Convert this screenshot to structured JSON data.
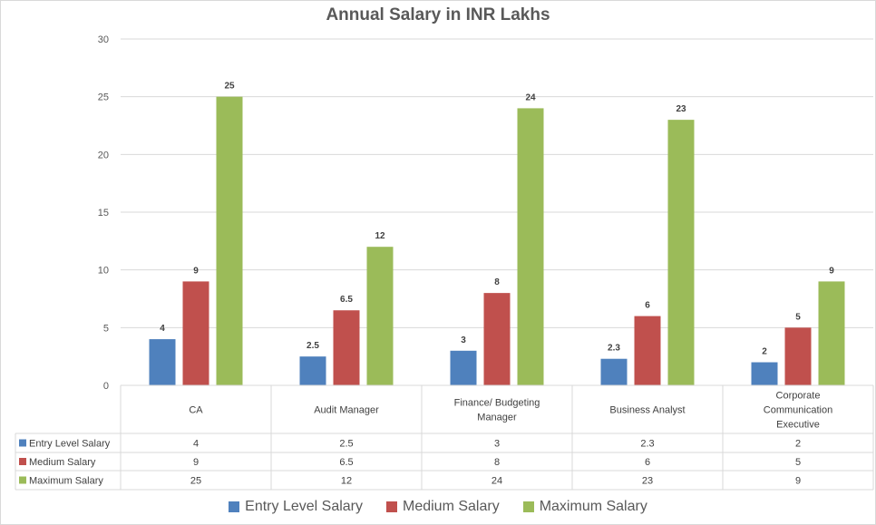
{
  "chart_data": {
    "type": "bar",
    "title": "Annual Salary in INR Lakhs",
    "xlabel": "",
    "ylabel": "",
    "ylim": [
      0,
      30
    ],
    "yticks": [
      0,
      5,
      10,
      15,
      20,
      25,
      30
    ],
    "grid": true,
    "legend_position": "bottom",
    "data_table": true,
    "categories": [
      "CA",
      "Audit Manager",
      "Finance/ Budgeting Manager",
      "Business Analyst",
      "Corporate Communication Executive"
    ],
    "category_lines": [
      [
        "CA"
      ],
      [
        "Audit Manager"
      ],
      [
        "Finance/ Budgeting",
        "Manager"
      ],
      [
        "Business Analyst"
      ],
      [
        "Corporate",
        "Communication",
        "Executive"
      ]
    ],
    "series": [
      {
        "name": "Entry Level Salary",
        "color": "#4f81bd",
        "values": [
          4,
          2.5,
          3,
          2.3,
          2
        ],
        "labels": [
          "4",
          "2.5",
          "3",
          "2.3",
          "2"
        ]
      },
      {
        "name": "Medium Salary",
        "color": "#c0504d",
        "values": [
          9,
          6.5,
          8,
          6,
          5
        ],
        "labels": [
          "9",
          "6.5",
          "8",
          "6",
          "5"
        ]
      },
      {
        "name": "Maximum Salary",
        "color": "#9bbb59",
        "values": [
          25,
          12,
          24,
          23,
          9
        ],
        "labels": [
          "25",
          "12",
          "24",
          "23",
          "9"
        ]
      }
    ]
  }
}
